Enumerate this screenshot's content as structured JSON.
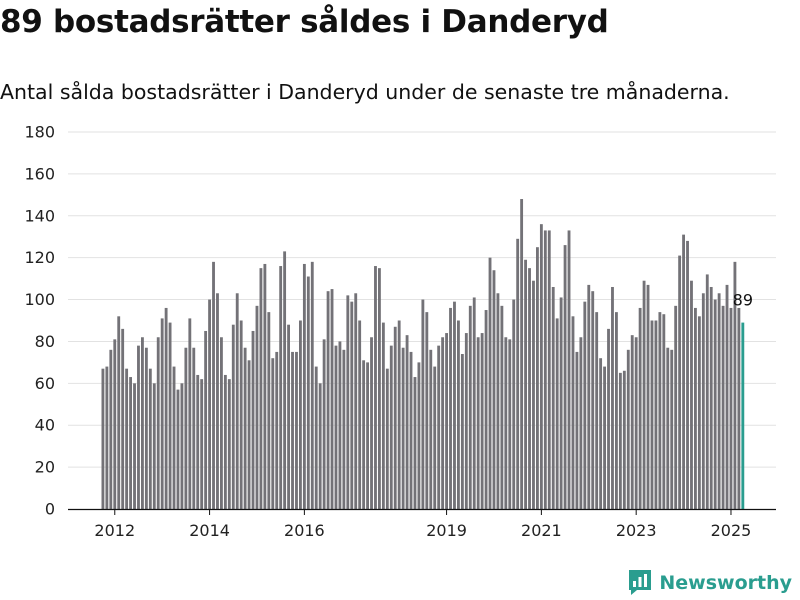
{
  "header": {
    "title": "89 bostadsrätter såldes i Danderyd",
    "subtitle": "Antal sålda bostadsrätter i Danderyd under de senaste tre månaderna."
  },
  "brand": {
    "name": "Newsworthy"
  },
  "colors": {
    "bar": "#737277",
    "highlight": "#2a9d8f",
    "grid": "#e2e2e2",
    "axis": "#111111"
  },
  "chart_data": {
    "type": "bar",
    "title": "89 bostadsrätter såldes i Danderyd",
    "subtitle": "Antal sålda bostadsrätter i Danderyd under de senaste tre månaderna.",
    "xlabel": "",
    "ylabel": "",
    "ylim": [
      0,
      180
    ],
    "yticks": [
      0,
      20,
      40,
      60,
      80,
      100,
      120,
      140,
      160,
      180
    ],
    "grid": true,
    "x_tick_labels": [
      "2012",
      "2014",
      "2016",
      "2019",
      "2021",
      "2023",
      "2025"
    ],
    "x_tick_dates": [
      "2012-01",
      "2014-01",
      "2016-01",
      "2019-01",
      "2021-01",
      "2023-01",
      "2025-01"
    ],
    "x_start": "2011-10",
    "last_value_label": "89",
    "values": [
      67,
      68,
      76,
      81,
      92,
      86,
      67,
      63,
      60,
      78,
      82,
      77,
      67,
      60,
      82,
      91,
      96,
      89,
      68,
      57,
      60,
      77,
      91,
      77,
      64,
      62,
      85,
      100,
      118,
      103,
      82,
      64,
      62,
      88,
      103,
      90,
      77,
      71,
      85,
      97,
      115,
      117,
      94,
      72,
      75,
      116,
      123,
      88,
      75,
      75,
      90,
      117,
      111,
      118,
      68,
      60,
      81,
      104,
      105,
      78,
      80,
      76,
      102,
      99,
      103,
      90,
      71,
      70,
      82,
      116,
      115,
      89,
      67,
      78,
      87,
      90,
      77,
      83,
      75,
      63,
      70,
      100,
      94,
      76,
      68,
      78,
      82,
      84,
      96,
      99,
      90,
      74,
      84,
      97,
      101,
      82,
      84,
      95,
      120,
      114,
      103,
      97,
      82,
      81,
      100,
      129,
      148,
      119,
      115,
      109,
      125,
      136,
      133,
      133,
      106,
      91,
      101,
      126,
      133,
      92,
      75,
      82,
      99,
      107,
      104,
      94,
      72,
      68,
      86,
      106,
      94,
      65,
      66,
      76,
      83,
      82,
      96,
      109,
      107,
      90,
      90,
      94,
      93,
      77,
      76,
      97,
      121,
      131,
      128,
      109,
      96,
      92,
      103,
      112,
      106,
      100,
      103,
      97,
      107,
      96,
      118,
      96,
      89
    ]
  }
}
